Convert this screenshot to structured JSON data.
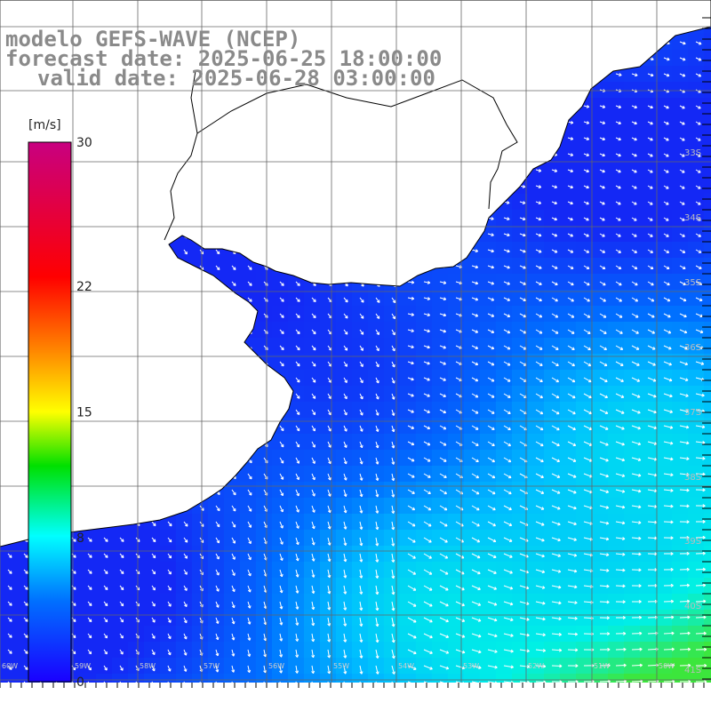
{
  "header": {
    "model": "modelo GEFS-WAVE (NCEP)",
    "forecast_date": "forecast date: 2025-06-25 18:00:00",
    "valid_date": "valid date: 2025-06-28 03:00:00"
  },
  "colorbar": {
    "unit": "[m/s]",
    "ticks": [
      "30",
      "22",
      "15",
      "8",
      "0"
    ],
    "tick_values": [
      30,
      22,
      15,
      8,
      0
    ],
    "colors": [
      "#1a00ff",
      "#00a8ff",
      "#00ffff",
      "#00e000",
      "#ffff00",
      "#ff8000",
      "#ff0000",
      "#c80080"
    ]
  },
  "map": {
    "lat_labels": [
      "33S",
      "34S",
      "35S",
      "36S",
      "37S",
      "38S",
      "39S",
      "40S",
      "41S"
    ],
    "lon_labels": [
      "60W",
      "59W",
      "58W",
      "57W",
      "56W",
      "55W",
      "54W",
      "53W",
      "52W",
      "51W",
      "50W"
    ],
    "land_color": "#ffffff",
    "coast_color": "#000000",
    "grid_color": "#555555",
    "arrow_color": "#ffffff"
  }
}
